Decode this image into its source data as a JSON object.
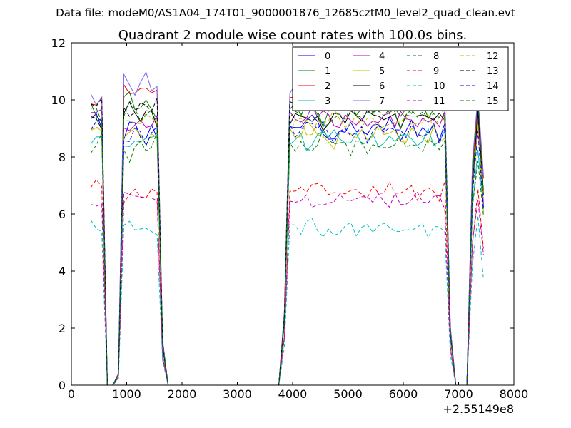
{
  "figure": {
    "suptitle": "Data file: modeM0/AS1A04_174T01_9000001876_12685cztM0_level2_quad_clean.evt"
  },
  "chart_data": {
    "type": "line",
    "title": "Quadrant 2 module wise count rates with 100.0s bins.",
    "xlabel": "",
    "ylabel": "",
    "x_offset_label": "+2.55149e8",
    "xlim": [
      0,
      8000
    ],
    "ylim": [
      0,
      12
    ],
    "xticks": [
      0,
      1000,
      2000,
      3000,
      4000,
      5000,
      6000,
      7000,
      8000
    ],
    "yticks": [
      0,
      2,
      4,
      6,
      8,
      10,
      12
    ],
    "xtick_labels": [
      "0",
      "1000",
      "2000",
      "3000",
      "4000",
      "5000",
      "6000",
      "7000",
      "8000"
    ],
    "ytick_labels": [
      "0",
      "2",
      "4",
      "6",
      "8",
      "10",
      "12"
    ],
    "legend_position": "top-right",
    "legend_columns": 4,
    "series": [
      {
        "name": "0",
        "color": "#0000ff",
        "dash": "solid",
        "level": 9.0,
        "spread": 0.55
      },
      {
        "name": "1",
        "color": "#008000",
        "dash": "solid",
        "level": 9.7,
        "spread": 0.45
      },
      {
        "name": "2",
        "color": "#ff0000",
        "dash": "solid",
        "level": 10.2,
        "spread": 0.4
      },
      {
        "name": "3",
        "color": "#00bfbf",
        "dash": "solid",
        "level": 8.6,
        "spread": 0.35
      },
      {
        "name": "4",
        "color": "#bf00bf",
        "dash": "solid",
        "level": 9.3,
        "spread": 0.45
      },
      {
        "name": "5",
        "color": "#bfbf00",
        "dash": "solid",
        "level": 8.8,
        "spread": 0.45
      },
      {
        "name": "6",
        "color": "#000000",
        "dash": "solid",
        "level": 9.4,
        "spread": 0.35
      },
      {
        "name": "7",
        "color": "#7b68ee",
        "dash": "solid",
        "level": 10.4,
        "spread": 0.55
      },
      {
        "name": "8",
        "color": "#008000",
        "dash": "dashed",
        "level": 8.4,
        "spread": 0.4
      },
      {
        "name": "9",
        "color": "#ff0000",
        "dash": "dashed",
        "level": 6.8,
        "spread": 0.3
      },
      {
        "name": "10",
        "color": "#00bfbf",
        "dash": "dashed",
        "level": 5.5,
        "spread": 0.3
      },
      {
        "name": "11",
        "color": "#bf00bf",
        "dash": "dashed",
        "level": 6.5,
        "spread": 0.3
      },
      {
        "name": "12",
        "color": "#bfbf00",
        "dash": "dashed",
        "level": 9.2,
        "spread": 0.4
      },
      {
        "name": "13",
        "color": "#000000",
        "dash": "dashed",
        "level": 9.8,
        "spread": 0.35
      },
      {
        "name": "14",
        "color": "#0000ff",
        "dash": "dashed",
        "level": 8.9,
        "spread": 0.4
      },
      {
        "name": "15",
        "color": "#008000",
        "dash": "dashed",
        "level": 9.5,
        "spread": 0.4
      }
    ],
    "x": [
      350,
      450,
      550,
      650,
      750,
      850,
      950,
      1050,
      1150,
      1250,
      1350,
      1450,
      1550,
      1650,
      1750,
      1850,
      2800,
      3750,
      3850,
      3950,
      4050,
      4150,
      4250,
      4350,
      4450,
      4550,
      4650,
      4750,
      4850,
      4950,
      5050,
      5150,
      5250,
      5350,
      5450,
      5550,
      5650,
      5750,
      5850,
      5950,
      6050,
      6150,
      6250,
      6350,
      6450,
      6550,
      6650,
      6750,
      6850,
      6950,
      7050,
      7150,
      7250,
      7350,
      7450
    ],
    "envelope": [
      1,
      1,
      1,
      0,
      0,
      0.04,
      1,
      1,
      1,
      1,
      1,
      1,
      1,
      0.15,
      0,
      0,
      0,
      0,
      0.25,
      1,
      1,
      1,
      1,
      1,
      1,
      1,
      1,
      1,
      1,
      1,
      1,
      1,
      1,
      1,
      1,
      1,
      1,
      1,
      1,
      1,
      1,
      1,
      1,
      1,
      1,
      1,
      1,
      1,
      0.2,
      0,
      0,
      0,
      0.75,
      1,
      0.7
    ],
    "wiggle": [
      0.6,
      0.9,
      1.0,
      0,
      0,
      0,
      0.9,
      1.2,
      0.3,
      -0.3,
      -0.9,
      -0.2,
      0.8,
      0,
      0,
      0,
      0,
      0,
      0,
      0.5,
      -0.2,
      0.3,
      -0.8,
      -1.0,
      -0.4,
      -1.2,
      -0.6,
      -0.9,
      -0.3,
      0.2,
      -0.5,
      0.4,
      -0.1,
      0.8,
      -0.2,
      0.5,
      0.1,
      0.6,
      -0.3,
      0.9,
      0.3,
      -0.4,
      0.6,
      0.2,
      -0.7,
      0.4,
      -0.9,
      0.8,
      0,
      0,
      0,
      0,
      0.4,
      1.1,
      -0.4
    ]
  }
}
